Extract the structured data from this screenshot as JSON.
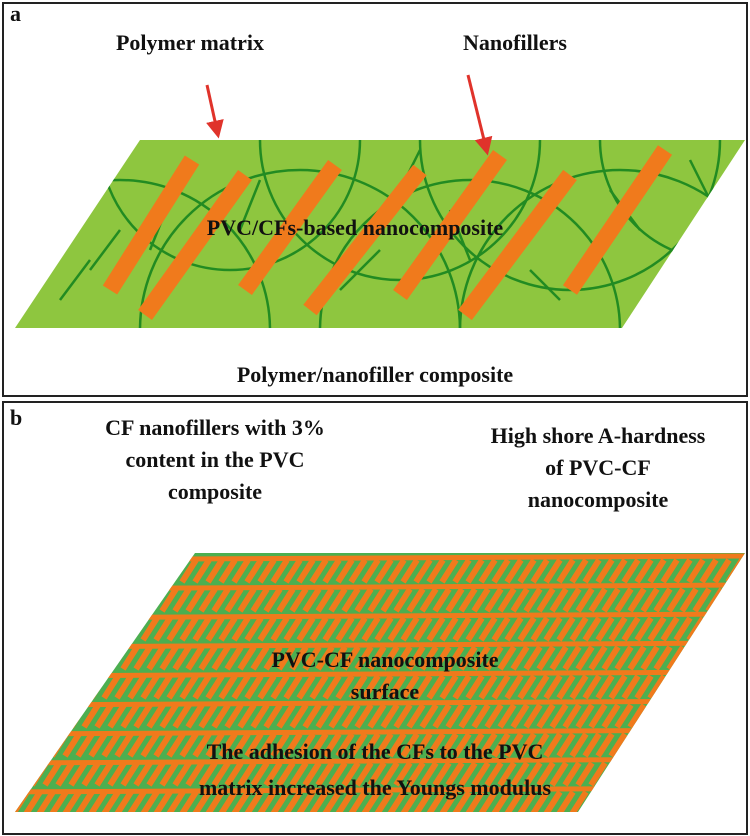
{
  "panel_a": {
    "label": "a",
    "callouts": [
      "Polymer matrix",
      "Nanofillers"
    ],
    "center_label": "PVC/CFs-based nanocomposite",
    "caption": "Polymer/nanofiller composite"
  },
  "panel_b": {
    "label": "b",
    "left_note": [
      "CF nanofillers with 3%",
      "content in the PVC",
      "composite"
    ],
    "right_note": [
      "High shore A-hardness",
      "of PVC-CF",
      "nanocomposite"
    ],
    "center_label": [
      "PVC-CF nanocomposite",
      "surface"
    ],
    "caption": [
      "The adhesion of the CFs to the PVC",
      "matrix increased the Youngs modulus"
    ]
  }
}
